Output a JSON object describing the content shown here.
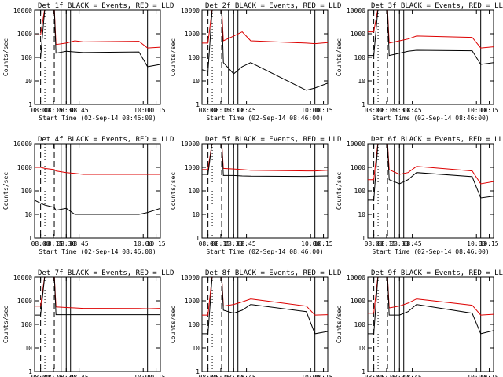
{
  "panel_common": {
    "title_suffix": "BLACK = Events, RED = LLD",
    "ylabel": "Counts/sec",
    "xlabel": "Start Time (02-Sep-14 08:46:00)",
    "y_ticks": [
      "1",
      "10",
      "100",
      "1000",
      "10000"
    ],
    "x_ticks": [
      "08:00",
      "08:15",
      "08:30",
      "08:45",
      "10:00",
      "10:15"
    ],
    "colors": {
      "events": "#000000",
      "lld": "#dd0000"
    }
  },
  "chart_data": [
    {
      "type": "line",
      "title": "Det 1f BLACK = Events, RED = LLD",
      "ylabel": "Counts/sec",
      "xlabel": "Start Time (02-Sep-14 08:46:00)",
      "yscale": "log",
      "ylim": [
        1,
        10000
      ],
      "xlim": [
        "07:53",
        "10:20"
      ],
      "x_ticks": [
        "08:00",
        "08:15",
        "08:30",
        "08:45",
        "10:00",
        "10:15"
      ],
      "markers": {
        "dashed": [
          "08:00",
          "08:16"
        ],
        "dotted": [
          "08:05"
        ],
        "solid": [
          "08:24",
          "08:30",
          "08:35",
          "10:05"
        ]
      },
      "series": [
        {
          "name": "LLD",
          "color": "#dd0000",
          "x": [
            "07:53",
            "08:00",
            "08:05",
            "08:16",
            "08:18",
            "08:30",
            "08:40",
            "08:50",
            "09:55",
            "10:05",
            "10:20"
          ],
          "values": [
            900,
            900,
            13000,
            13000,
            350,
            400,
            500,
            450,
            480,
            250,
            270
          ]
        },
        {
          "name": "Events",
          "color": "#000000",
          "x": [
            "07:53",
            "08:00",
            "08:05",
            "08:16",
            "08:18",
            "08:30",
            "08:40",
            "08:50",
            "09:55",
            "10:05",
            "10:20"
          ],
          "values": [
            100,
            100,
            13000,
            13000,
            150,
            180,
            170,
            160,
            170,
            40,
            50
          ]
        }
      ]
    },
    {
      "type": "line",
      "title": "Det 2f BLACK = Events, RED = LLD",
      "ylabel": "Counts/sec",
      "xlabel": "Start Time (02-Sep-14 08:46:00)",
      "yscale": "log",
      "ylim": [
        1,
        10000
      ],
      "xlim": [
        "07:53",
        "10:20"
      ],
      "x_ticks": [
        "08:00",
        "08:15",
        "08:30",
        "08:45",
        "10:00",
        "10:15"
      ],
      "markers": {
        "dashed": [
          "08:00",
          "08:16"
        ],
        "dotted": [
          "08:05"
        ],
        "solid": [
          "08:24",
          "08:30",
          "08:35",
          "10:05"
        ]
      },
      "series": [
        {
          "name": "LLD",
          "color": "#dd0000",
          "x": [
            "07:53",
            "08:00",
            "08:05",
            "08:16",
            "08:18",
            "08:30",
            "08:40",
            "08:50",
            "09:55",
            "10:05",
            "10:20"
          ],
          "values": [
            400,
            400,
            13000,
            13000,
            500,
            800,
            1200,
            500,
            400,
            380,
            420
          ]
        },
        {
          "name": "Events",
          "color": "#000000",
          "x": [
            "07:53",
            "08:00",
            "08:05",
            "08:16",
            "08:18",
            "08:30",
            "08:40",
            "08:50",
            "09:55",
            "10:05",
            "10:20"
          ],
          "values": [
            30,
            25,
            13000,
            13000,
            60,
            20,
            40,
            60,
            4,
            5,
            8
          ]
        }
      ]
    },
    {
      "type": "line",
      "title": "Det 3f BLACK = Events, RED = LLD",
      "ylabel": "Counts/sec",
      "xlabel": "Start Time (02-Sep-14 08:46:00)",
      "yscale": "log",
      "ylim": [
        1,
        10000
      ],
      "xlim": [
        "07:53",
        "10:20"
      ],
      "x_ticks": [
        "08:00",
        "08:15",
        "08:30",
        "08:45",
        "10:00",
        "10:15"
      ],
      "markers": {
        "dashed": [
          "08:00",
          "08:16"
        ],
        "dotted": [
          "08:05"
        ],
        "solid": [
          "08:24",
          "08:30",
          "08:35",
          "10:05"
        ]
      },
      "series": [
        {
          "name": "LLD",
          "color": "#dd0000",
          "x": [
            "07:53",
            "08:00",
            "08:05",
            "08:16",
            "08:18",
            "08:30",
            "08:40",
            "08:50",
            "09:55",
            "10:05",
            "10:20"
          ],
          "values": [
            1200,
            1200,
            13000,
            13000,
            400,
            500,
            600,
            800,
            700,
            250,
            280
          ]
        },
        {
          "name": "Events",
          "color": "#000000",
          "x": [
            "07:53",
            "08:00",
            "08:05",
            "08:16",
            "08:18",
            "08:30",
            "08:40",
            "08:50",
            "09:55",
            "10:05",
            "10:20"
          ],
          "values": [
            120,
            120,
            13000,
            13000,
            120,
            150,
            180,
            200,
            190,
            50,
            60
          ]
        }
      ]
    },
    {
      "type": "line",
      "title": "Det 4f BLACK = Events, RED = LLD",
      "ylabel": "Counts/sec",
      "xlabel": "Start Time (02-Sep-14 08:46:00)",
      "yscale": "log",
      "ylim": [
        1,
        10000
      ],
      "xlim": [
        "07:53",
        "10:20"
      ],
      "x_ticks": [
        "08:00",
        "08:15",
        "08:30",
        "08:45",
        "10:00",
        "10:15"
      ],
      "markers": {
        "dashed": [
          "08:00",
          "08:16"
        ],
        "dotted": [
          "08:05"
        ],
        "solid": [
          "08:24",
          "08:30",
          "08:35",
          "10:05"
        ]
      },
      "series": [
        {
          "name": "LLD",
          "color": "#dd0000",
          "x": [
            "07:53",
            "08:00",
            "08:05",
            "08:16",
            "08:18",
            "08:30",
            "08:40",
            "08:50",
            "09:55",
            "10:05",
            "10:20"
          ],
          "values": [
            1000,
            1000,
            900,
            800,
            700,
            600,
            550,
            500,
            500,
            500,
            500
          ]
        },
        {
          "name": "Events",
          "color": "#000000",
          "x": [
            "07:53",
            "08:00",
            "08:05",
            "08:16",
            "08:18",
            "08:30",
            "08:40",
            "08:50",
            "09:55",
            "10:05",
            "10:20"
          ],
          "values": [
            40,
            30,
            25,
            20,
            15,
            18,
            10,
            10,
            10,
            12,
            18
          ]
        }
      ]
    },
    {
      "type": "line",
      "title": "Det 5f BLACK = Events, RED = LLD",
      "ylabel": "Counts/sec",
      "xlabel": "Start Time (02-Sep-14 08:46:00)",
      "yscale": "log",
      "ylim": [
        1,
        10000
      ],
      "xlim": [
        "07:53",
        "10:20"
      ],
      "x_ticks": [
        "08:00",
        "08:15",
        "08:30",
        "08:45",
        "10:00",
        "10:15"
      ],
      "markers": {
        "dashed": [
          "08:00",
          "08:16"
        ],
        "dotted": [
          "08:05"
        ],
        "solid": [
          "08:24",
          "08:30",
          "08:35",
          "10:05"
        ]
      },
      "series": [
        {
          "name": "LLD",
          "color": "#dd0000",
          "x": [
            "07:53",
            "08:00",
            "08:05",
            "08:16",
            "08:18",
            "08:30",
            "08:40",
            "08:50",
            "09:55",
            "10:05",
            "10:20"
          ],
          "values": [
            800,
            800,
            13000,
            13000,
            900,
            850,
            800,
            750,
            700,
            700,
            750
          ]
        },
        {
          "name": "Events",
          "color": "#000000",
          "x": [
            "07:53",
            "08:00",
            "08:05",
            "08:16",
            "08:18",
            "08:30",
            "08:40",
            "08:50",
            "09:55",
            "10:05",
            "10:20"
          ],
          "values": [
            500,
            500,
            13000,
            13000,
            450,
            450,
            430,
            420,
            410,
            420,
            430
          ]
        }
      ]
    },
    {
      "type": "line",
      "title": "Det 6f BLACK = Events, RED = LLD",
      "ylabel": "Counts/sec",
      "xlabel": "Start Time (02-Sep-14 08:46:00)",
      "yscale": "log",
      "ylim": [
        1,
        10000
      ],
      "xlim": [
        "07:53",
        "10:20"
      ],
      "x_ticks": [
        "08:00",
        "08:15",
        "08:30",
        "08:45",
        "10:00",
        "10:15"
      ],
      "markers": {
        "dashed": [
          "08:00",
          "08:16"
        ],
        "dotted": [
          "08:05"
        ],
        "solid": [
          "08:24",
          "08:30",
          "08:35",
          "10:05"
        ]
      },
      "series": [
        {
          "name": "LLD",
          "color": "#dd0000",
          "x": [
            "07:53",
            "08:00",
            "08:05",
            "08:16",
            "08:18",
            "08:30",
            "08:40",
            "08:50",
            "09:55",
            "10:05",
            "10:20"
          ],
          "values": [
            300,
            300,
            13000,
            13000,
            800,
            500,
            600,
            1100,
            700,
            200,
            250
          ]
        },
        {
          "name": "Events",
          "color": "#000000",
          "x": [
            "07:53",
            "08:00",
            "08:05",
            "08:16",
            "08:18",
            "08:30",
            "08:40",
            "08:50",
            "09:55",
            "10:05",
            "10:20"
          ],
          "values": [
            40,
            40,
            13000,
            13000,
            300,
            200,
            300,
            600,
            400,
            50,
            60
          ]
        }
      ]
    },
    {
      "type": "line",
      "title": "Det 7f BLACK = Events, RED = LLD",
      "ylabel": "Counts/sec",
      "xlabel": "Start Time (02-Sep-14 08:46:00)",
      "yscale": "log",
      "ylim": [
        1,
        10000
      ],
      "xlim": [
        "07:53",
        "10:20"
      ],
      "x_ticks": [
        "08:00",
        "08:15",
        "08:30",
        "08:45",
        "10:00",
        "10:15"
      ],
      "markers": {
        "dashed": [
          "08:00",
          "08:16"
        ],
        "dotted": [
          "08:05"
        ],
        "solid": [
          "08:24",
          "08:30",
          "08:35",
          "10:05"
        ]
      },
      "series": [
        {
          "name": "LLD",
          "color": "#dd0000",
          "x": [
            "07:53",
            "08:00",
            "08:05",
            "08:16",
            "08:18",
            "08:30",
            "08:40",
            "08:50",
            "09:55",
            "10:05",
            "10:20"
          ],
          "values": [
            600,
            600,
            13000,
            13000,
            550,
            520,
            500,
            480,
            470,
            460,
            480
          ]
        },
        {
          "name": "Events",
          "color": "#000000",
          "x": [
            "07:53",
            "08:00",
            "08:05",
            "08:16",
            "08:18",
            "08:30",
            "08:40",
            "08:50",
            "09:55",
            "10:05",
            "10:20"
          ],
          "values": [
            250,
            250,
            13000,
            13000,
            260,
            260,
            260,
            260,
            260,
            260,
            260
          ]
        }
      ]
    },
    {
      "type": "line",
      "title": "Det 8f BLACK = Events, RED = LLD",
      "ylabel": "Counts/sec",
      "xlabel": "Start Time (02-Sep-14 08:46:00)",
      "yscale": "log",
      "ylim": [
        1,
        10000
      ],
      "xlim": [
        "07:53",
        "10:20"
      ],
      "x_ticks": [
        "08:00",
        "08:15",
        "08:30",
        "08:45",
        "10:00",
        "10:15"
      ],
      "markers": {
        "dashed": [
          "08:00",
          "08:16"
        ],
        "dotted": [
          "08:05"
        ],
        "solid": [
          "08:24",
          "08:30",
          "08:35",
          "10:05"
        ]
      },
      "series": [
        {
          "name": "LLD",
          "color": "#dd0000",
          "x": [
            "07:53",
            "08:00",
            "08:05",
            "08:16",
            "08:18",
            "08:30",
            "08:40",
            "08:50",
            "09:55",
            "10:05",
            "10:20"
          ],
          "values": [
            250,
            250,
            13000,
            13000,
            600,
            700,
            900,
            1200,
            600,
            250,
            260
          ]
        },
        {
          "name": "Events",
          "color": "#000000",
          "x": [
            "07:53",
            "08:00",
            "08:05",
            "08:16",
            "08:18",
            "08:30",
            "08:40",
            "08:50",
            "09:55",
            "10:05",
            "10:20"
          ],
          "values": [
            40,
            40,
            13000,
            13000,
            400,
            300,
            400,
            700,
            350,
            40,
            50
          ]
        }
      ]
    },
    {
      "type": "line",
      "title": "Det 9f BLACK = Events, RED = LLD",
      "ylabel": "Counts/sec",
      "xlabel": "Start Time (02-Sep-14 08:46:00)",
      "yscale": "log",
      "ylim": [
        1,
        10000
      ],
      "xlim": [
        "07:53",
        "10:20"
      ],
      "x_ticks": [
        "08:00",
        "08:15",
        "08:30",
        "08:45",
        "10:00",
        "10:15"
      ],
      "markers": {
        "dashed": [
          "08:00",
          "08:16"
        ],
        "dotted": [
          "08:05"
        ],
        "solid": [
          "08:24",
          "08:30",
          "08:35",
          "10:05"
        ]
      },
      "series": [
        {
          "name": "LLD",
          "color": "#dd0000",
          "x": [
            "07:53",
            "08:00",
            "08:05",
            "08:16",
            "08:18",
            "08:30",
            "08:40",
            "08:50",
            "09:55",
            "10:05",
            "10:20"
          ],
          "values": [
            300,
            300,
            13000,
            13000,
            500,
            600,
            800,
            1200,
            650,
            250,
            270
          ]
        },
        {
          "name": "Events",
          "color": "#000000",
          "x": [
            "07:53",
            "08:00",
            "08:05",
            "08:16",
            "08:18",
            "08:30",
            "08:40",
            "08:50",
            "09:55",
            "10:05",
            "10:20"
          ],
          "values": [
            40,
            40,
            13000,
            13000,
            250,
            250,
            350,
            700,
            300,
            40,
            55
          ]
        }
      ]
    }
  ]
}
